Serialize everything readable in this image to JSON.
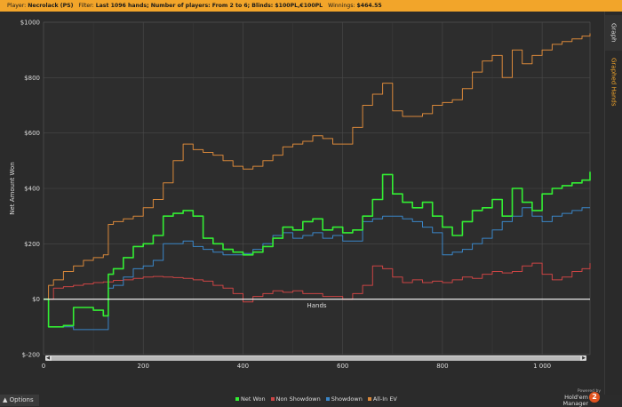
{
  "header": {
    "player_label": "Player:",
    "player_value": "Necrolack (PS)",
    "filter_label": "Filter:",
    "filter_value": "Last 1096 hands; Number of players: From 2 to 6; Blinds: $100PL,€100PL",
    "winnings_label": "Winnings:",
    "winnings_value": "$464.55"
  },
  "side_tabs": {
    "graph": "Graph",
    "graphed_hands": "Graphed Hands"
  },
  "footer": {
    "options_label": "Options",
    "powered_by": "Powered by",
    "brand": "Hold'em Manager",
    "brand_logo_text": "2"
  },
  "colors": {
    "net_won": "#33ee33",
    "non_showdown": "#cc4444",
    "showdown": "#3a86c8",
    "all_in_ev": "#d9883a",
    "accent": "#f2a52a"
  },
  "chart_data": {
    "type": "line",
    "xlabel": "Hands",
    "ylabel": "Net Amount Won",
    "xlim": [
      0,
      1096
    ],
    "ylim": [
      -200,
      1000
    ],
    "x_ticks": [
      0,
      200,
      400,
      600,
      800,
      1000
    ],
    "x_tick_labels": [
      "0",
      "200",
      "400",
      "600",
      "800",
      "1 000"
    ],
    "y_ticks": [
      -200,
      0,
      200,
      400,
      600,
      800,
      1000
    ],
    "y_tick_labels": [
      "$-200",
      "$0",
      "$200",
      "$400",
      "$600",
      "$800",
      "$1000"
    ],
    "grid": true,
    "legend_position": "bottom",
    "series": [
      {
        "name": "Net Won",
        "x": [
          0,
          10,
          20,
          40,
          60,
          80,
          100,
          120,
          130,
          140,
          160,
          180,
          200,
          220,
          240,
          260,
          280,
          300,
          320,
          340,
          360,
          380,
          400,
          420,
          440,
          460,
          480,
          500,
          520,
          540,
          560,
          580,
          600,
          620,
          640,
          660,
          680,
          700,
          720,
          740,
          760,
          780,
          800,
          820,
          840,
          860,
          880,
          900,
          920,
          940,
          960,
          980,
          1000,
          1020,
          1040,
          1060,
          1080,
          1096
        ],
        "values": [
          0,
          -100,
          -100,
          -95,
          -30,
          -30,
          -40,
          -60,
          90,
          110,
          150,
          190,
          200,
          230,
          300,
          310,
          320,
          300,
          220,
          200,
          180,
          170,
          160,
          170,
          190,
          220,
          260,
          250,
          280,
          290,
          250,
          260,
          240,
          250,
          300,
          360,
          450,
          380,
          350,
          330,
          350,
          300,
          260,
          230,
          280,
          320,
          330,
          360,
          300,
          400,
          350,
          320,
          380,
          400,
          410,
          420,
          430,
          460
        ]
      },
      {
        "name": "Non Showdown",
        "x": [
          0,
          20,
          40,
          60,
          80,
          100,
          120,
          140,
          160,
          180,
          200,
          220,
          240,
          260,
          280,
          300,
          320,
          340,
          360,
          380,
          400,
          420,
          440,
          460,
          480,
          500,
          520,
          540,
          560,
          580,
          600,
          620,
          640,
          660,
          680,
          700,
          720,
          740,
          760,
          780,
          800,
          820,
          840,
          860,
          880,
          900,
          920,
          940,
          960,
          980,
          1000,
          1020,
          1040,
          1060,
          1080,
          1096
        ],
        "values": [
          0,
          40,
          45,
          50,
          55,
          60,
          62,
          68,
          70,
          75,
          80,
          82,
          80,
          78,
          75,
          70,
          65,
          50,
          40,
          20,
          -10,
          10,
          20,
          30,
          25,
          30,
          20,
          20,
          10,
          10,
          0,
          20,
          50,
          120,
          110,
          80,
          60,
          70,
          60,
          65,
          60,
          70,
          80,
          75,
          90,
          100,
          95,
          100,
          120,
          130,
          90,
          70,
          80,
          100,
          110,
          130
        ]
      },
      {
        "name": "Showdown",
        "x": [
          0,
          10,
          40,
          60,
          80,
          100,
          120,
          130,
          140,
          160,
          180,
          200,
          220,
          240,
          260,
          280,
          300,
          320,
          340,
          360,
          380,
          400,
          420,
          440,
          460,
          480,
          500,
          520,
          540,
          560,
          580,
          600,
          620,
          640,
          660,
          680,
          700,
          720,
          740,
          760,
          780,
          800,
          820,
          840,
          860,
          880,
          900,
          920,
          940,
          960,
          980,
          1000,
          1020,
          1040,
          1060,
          1080,
          1096
        ],
        "values": [
          0,
          -100,
          -100,
          -110,
          -110,
          -110,
          -110,
          40,
          50,
          80,
          110,
          120,
          140,
          200,
          200,
          210,
          190,
          180,
          170,
          160,
          160,
          165,
          180,
          200,
          230,
          240,
          220,
          230,
          240,
          220,
          230,
          210,
          210,
          280,
          290,
          300,
          300,
          290,
          280,
          260,
          240,
          160,
          170,
          180,
          200,
          220,
          250,
          280,
          300,
          330,
          300,
          280,
          300,
          310,
          320,
          330,
          330
        ]
      },
      {
        "name": "All-In EV",
        "x": [
          0,
          10,
          20,
          40,
          60,
          80,
          100,
          120,
          130,
          140,
          160,
          180,
          200,
          220,
          240,
          260,
          280,
          300,
          320,
          340,
          360,
          380,
          400,
          420,
          440,
          460,
          480,
          500,
          520,
          540,
          560,
          580,
          600,
          620,
          640,
          660,
          680,
          700,
          720,
          740,
          760,
          780,
          800,
          820,
          840,
          860,
          880,
          900,
          920,
          940,
          960,
          980,
          1000,
          1020,
          1040,
          1060,
          1080,
          1096
        ],
        "values": [
          0,
          50,
          70,
          100,
          120,
          140,
          150,
          160,
          270,
          280,
          290,
          300,
          330,
          360,
          420,
          500,
          560,
          540,
          530,
          520,
          500,
          480,
          470,
          480,
          500,
          520,
          550,
          560,
          570,
          590,
          580,
          560,
          560,
          620,
          700,
          740,
          780,
          680,
          660,
          660,
          670,
          700,
          710,
          720,
          760,
          820,
          860,
          880,
          800,
          900,
          850,
          880,
          900,
          920,
          930,
          940,
          950,
          960
        ]
      }
    ]
  }
}
